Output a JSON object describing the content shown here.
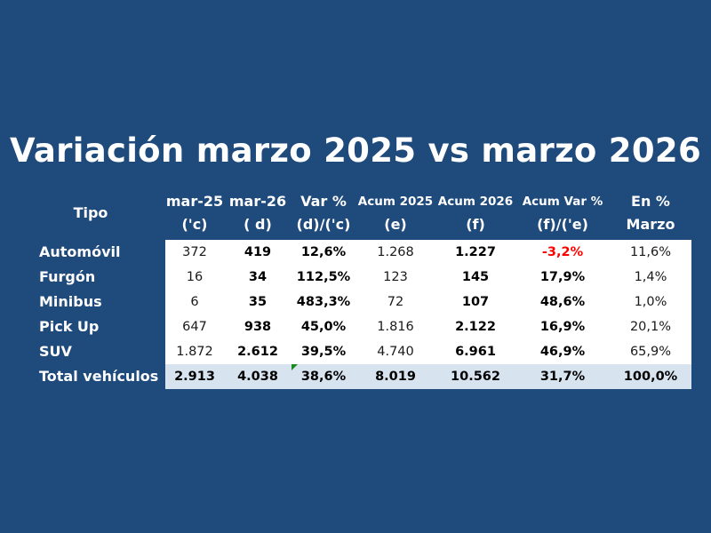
{
  "title": "Variación marzo 2025 vs marzo 2026",
  "headers": {
    "tipo": "Tipo",
    "columns": [
      {
        "line1": "mar-25",
        "line2": "('c)"
      },
      {
        "line1": "mar-26",
        "line2": "( d)"
      },
      {
        "line1": "Var %",
        "line2": "(d)/('c)"
      },
      {
        "line1": "Acum 2025",
        "line2": "(e)"
      },
      {
        "line1": "Acum 2026",
        "line2": "(f)"
      },
      {
        "line1": "Acum Var %",
        "line2": "(f)/('e)"
      },
      {
        "line1": "En %",
        "line2": "Marzo"
      }
    ]
  },
  "rows": [
    {
      "label": "Automóvil",
      "values": [
        "372",
        "419",
        "12,6%",
        "1.268",
        "1.227",
        "-3,2%",
        "11,6%"
      ]
    },
    {
      "label": "Furgón",
      "values": [
        "16",
        "34",
        "112,5%",
        "123",
        "145",
        "17,9%",
        "1,4%"
      ]
    },
    {
      "label": "Minibus",
      "values": [
        "6",
        "35",
        "483,3%",
        "72",
        "107",
        "48,6%",
        "1,0%"
      ]
    },
    {
      "label": "Pick Up",
      "values": [
        "647",
        "938",
        "45,0%",
        "1.816",
        "2.122",
        "16,9%",
        "20,1%"
      ]
    },
    {
      "label": "SUV",
      "values": [
        "1.872",
        "2.612",
        "39,5%",
        "4.740",
        "6.961",
        "46,9%",
        "65,9%"
      ]
    },
    {
      "label": "Total vehículos",
      "values": [
        "2.913",
        "4.038",
        "38,6%",
        "8.019",
        "10.562",
        "31,7%",
        "100,0%"
      ]
    }
  ],
  "colors": {
    "background": "#1f4a7c",
    "total_band": "#d8e3f0",
    "negative": "#ff0000"
  }
}
